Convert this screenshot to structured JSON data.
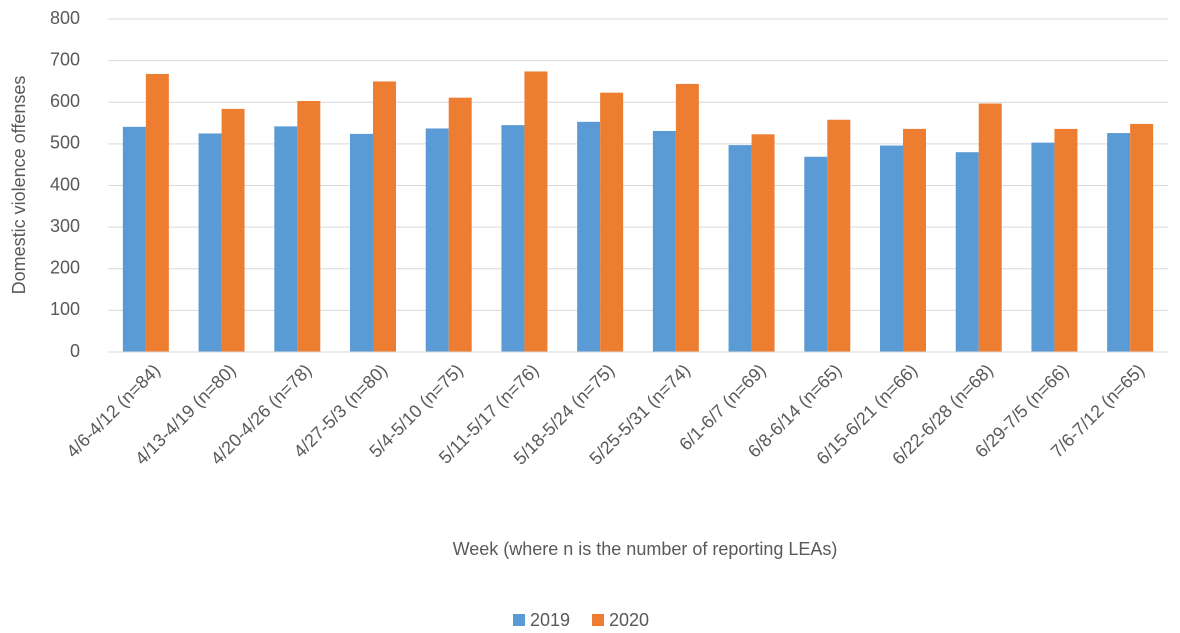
{
  "chart_data": {
    "type": "bar",
    "x_label": "Week (where n is the number of reporting LEAs)",
    "y_label": "Domestic violence offenses",
    "categories": [
      "4/6-4/12 (n=84)",
      "4/13-4/19 (n=80)",
      "4/20-4/26 (n=78)",
      "4/27-5/3 (n=80)",
      "5/4-5/10 (n=75)",
      "5/11-5/17 (n=76)",
      "5/18-5/24 (n=75)",
      "5/25-5/31 (n=74)",
      "6/1-6/7 (n=69)",
      "6/8-6/14 (n=65)",
      "6/15-6/21 (n=66)",
      "6/22-6/28 (n=68)",
      "6/29-7/5 (n=66)",
      "7/6-7/12 (n=65)"
    ],
    "series": [
      {
        "name": "2019",
        "color": "#5b9bd5",
        "values": [
          541,
          525,
          542,
          524,
          537,
          545,
          553,
          531,
          497,
          469,
          496,
          480,
          503,
          526
        ]
      },
      {
        "name": "2020",
        "color": "#ed7d31",
        "values": [
          668,
          584,
          603,
          650,
          611,
          674,
          623,
          644,
          523,
          558,
          536,
          597,
          536,
          548
        ]
      }
    ],
    "ylim": [
      0,
      800
    ],
    "yticks": [
      0,
      100,
      200,
      300,
      400,
      500,
      600,
      700,
      800
    ],
    "grid": true,
    "legend": "bottom"
  }
}
